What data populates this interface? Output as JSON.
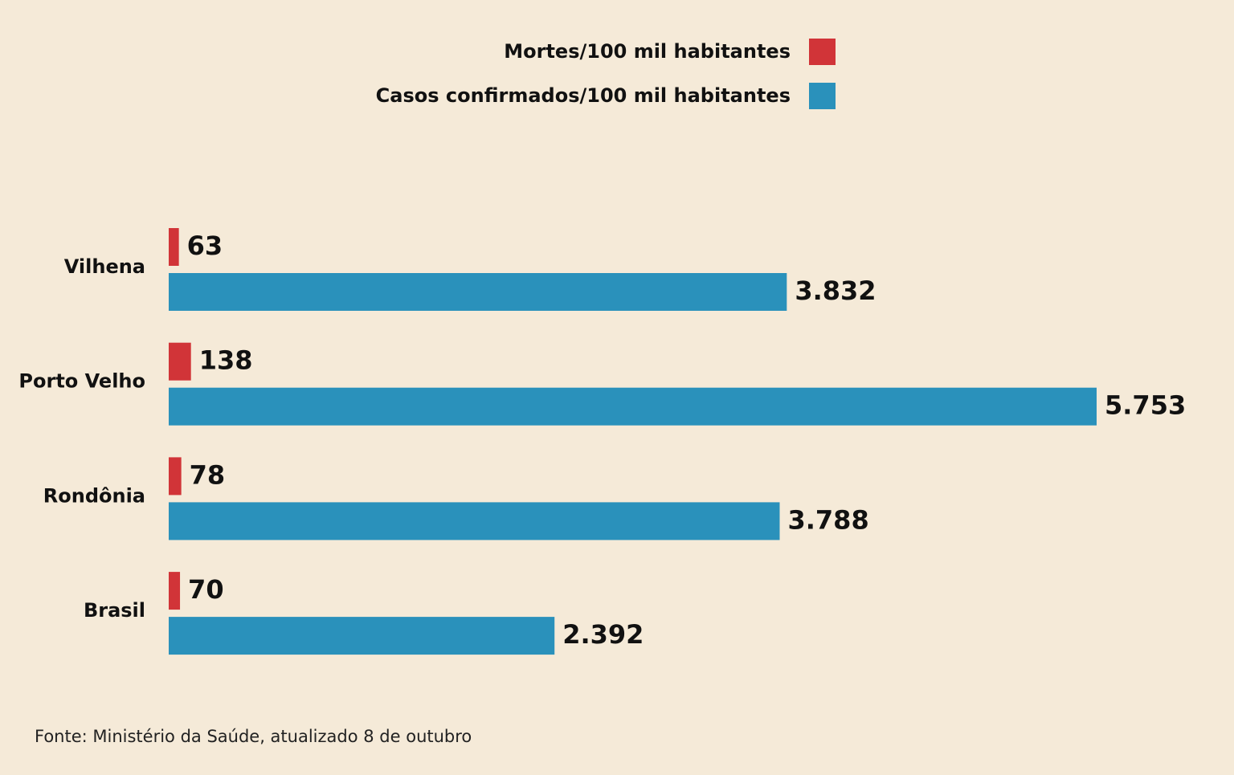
{
  "chart_data": {
    "type": "bar",
    "orientation": "horizontal",
    "categories": [
      "Vilhena",
      "Porto Velho",
      "Rondônia",
      "Brasil"
    ],
    "series": [
      {
        "name": "Mortes/100 mil habitantes",
        "color": "#d13438",
        "values": [
          63,
          138,
          78,
          70
        ]
      },
      {
        "name": "Casos confirmados/100 mil habitantes",
        "color": "#2a91bb",
        "values": [
          3832,
          5753,
          3788,
          2392
        ],
        "value_labels": [
          "3.832",
          "5.753",
          "3.788",
          "2.392"
        ]
      }
    ],
    "legend": "top-right",
    "source": "Fonte: Ministério da Saúde, atualizado 8 de outubro"
  }
}
